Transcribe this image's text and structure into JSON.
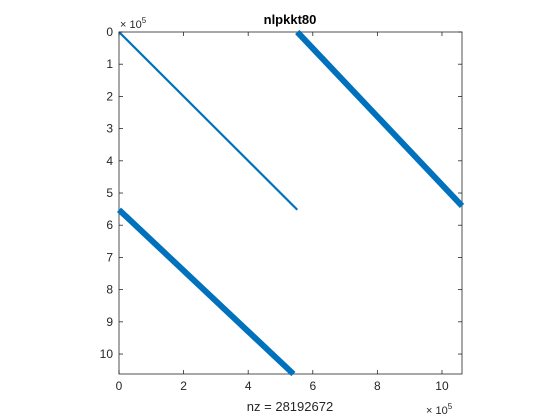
{
  "chart_data": {
    "type": "scatter",
    "subtype": "sparsity-pattern",
    "title": "nlpkkt80",
    "xlabel": "nz = 28192672",
    "ylabel": "",
    "xlim": [
      0,
      10.62
    ],
    "ylim": [
      10.62,
      0
    ],
    "y_axis_direction": "reversed",
    "axis_exponent": {
      "base": "× 10",
      "power": "5"
    },
    "xticks": [
      0,
      2,
      4,
      6,
      8,
      10
    ],
    "yticks": [
      0,
      1,
      2,
      3,
      4,
      5,
      6,
      7,
      8,
      9,
      10
    ],
    "grid": false,
    "box": true,
    "marker_color": "#0072BD",
    "bands": [
      {
        "name": "diagonal",
        "from": [
          0,
          0
        ],
        "to": [
          5.52,
          5.52
        ],
        "density": "thin"
      },
      {
        "name": "upper-right-block",
        "from": [
          5.52,
          0
        ],
        "to": [
          10.62,
          5.4
        ],
        "density": "thick"
      },
      {
        "name": "lower-left-block",
        "from": [
          0,
          5.52
        ],
        "to": [
          5.4,
          10.62
        ],
        "density": "thick"
      }
    ]
  }
}
